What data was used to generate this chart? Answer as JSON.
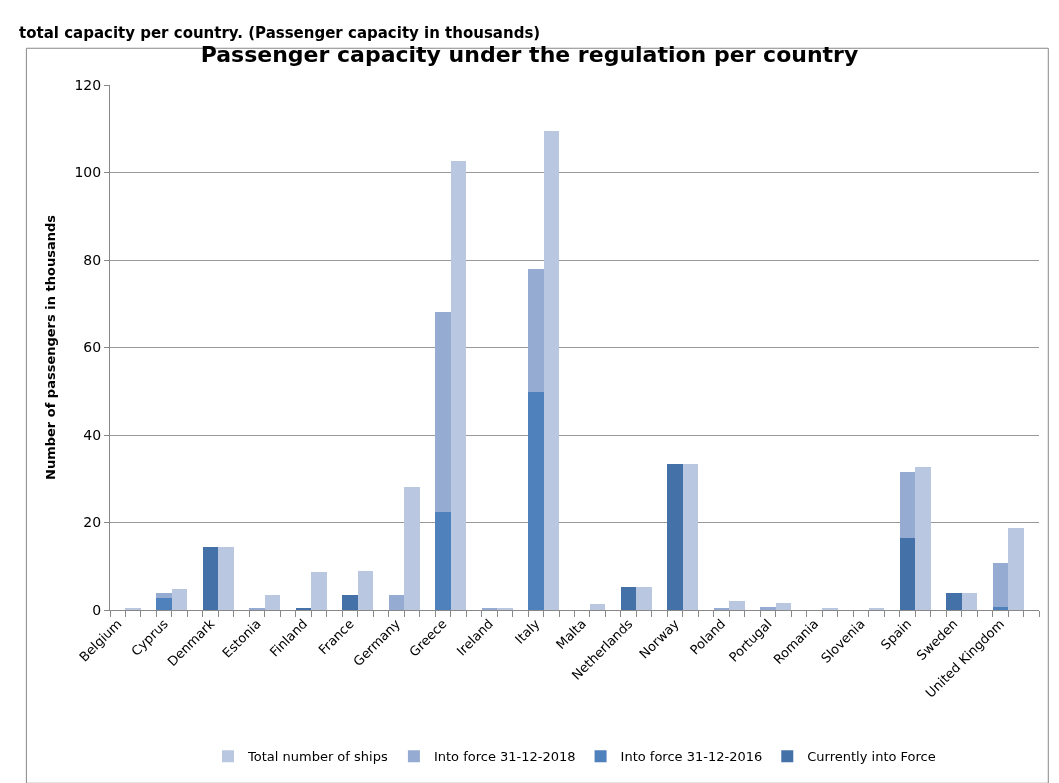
{
  "chart_data": {
    "type": "bar",
    "title": "Passenger capacity under the regulation per country",
    "ylabel": "Number of passengers in thousands",
    "annotations": [
      "total capacity per country. (Passenger capacity in thousands)"
    ],
    "categories": [
      "Belgium",
      null,
      null,
      "Cyprus",
      null,
      null,
      "Denmark",
      null,
      null,
      "Estonia",
      null,
      null,
      "Finland",
      null,
      null,
      "France",
      null,
      null,
      "Germany",
      null,
      null,
      "Greece",
      null,
      null,
      "Ireland",
      null,
      null,
      "Italy",
      null,
      null,
      "Malta",
      null,
      null,
      "Netherlands",
      null,
      null,
      "Norway",
      null,
      null,
      "Poland",
      null,
      null,
      "Portugal",
      null,
      null,
      "Romania",
      null,
      null,
      "Slovenia",
      null,
      null,
      "Spain",
      null,
      null,
      "Sweden",
      null,
      null,
      "United Kingdom",
      null,
      null
    ],
    "stacked": true,
    "series": [
      {
        "name": "Currently into Force",
        "color": "#4472a8",
        "values": [
          0,
          null,
          null,
          0,
          null,
          null,
          14.4,
          null,
          null,
          0,
          null,
          null,
          0.4,
          null,
          null,
          3.5,
          null,
          null,
          0,
          null,
          null,
          0,
          null,
          null,
          0,
          null,
          null,
          0,
          null,
          null,
          0,
          null,
          null,
          5.2,
          null,
          null,
          33.3,
          null,
          null,
          0,
          null,
          null,
          0,
          null,
          null,
          0,
          null,
          null,
          0,
          null,
          null,
          16.5,
          null,
          null,
          4.0,
          null,
          null,
          0,
          null,
          null
        ]
      },
      {
        "name": "Into force 31-12-2016",
        "color": "#4f81bd",
        "values": [
          0,
          null,
          null,
          2.8,
          null,
          null,
          0,
          null,
          null,
          0,
          null,
          null,
          0,
          null,
          null,
          0,
          null,
          null,
          0,
          null,
          null,
          22.5,
          null,
          null,
          0,
          null,
          null,
          49.8,
          null,
          null,
          0,
          null,
          null,
          0,
          null,
          null,
          0,
          null,
          null,
          0,
          null,
          null,
          0,
          null,
          null,
          0,
          null,
          null,
          0,
          null,
          null,
          0,
          null,
          null,
          0,
          null,
          null,
          0.8,
          null,
          null
        ]
      },
      {
        "name": "Into force 31-12-2018",
        "color": "#95abd1",
        "values": [
          0,
          null,
          null,
          1.0,
          null,
          null,
          0,
          null,
          null,
          0.3,
          null,
          null,
          0,
          null,
          null,
          0,
          null,
          null,
          3.5,
          null,
          null,
          45.7,
          null,
          null,
          0.3,
          null,
          null,
          28.1,
          null,
          null,
          0,
          null,
          null,
          0,
          null,
          null,
          0,
          null,
          null,
          0.3,
          null,
          null,
          0.8,
          null,
          null,
          0,
          null,
          null,
          0,
          null,
          null,
          15.0,
          null,
          null,
          0,
          null,
          null,
          10.0,
          null,
          null
        ]
      },
      {
        "name": "Total number of ships",
        "color": "#b9c7e1",
        "values": [
          null,
          0.3,
          null,
          null,
          4.8,
          null,
          null,
          14.4,
          null,
          null,
          3.5,
          null,
          null,
          8.7,
          null,
          null,
          9.0,
          null,
          null,
          28.2,
          null,
          null,
          102.7,
          null,
          null,
          0.3,
          null,
          null,
          109.6,
          null,
          null,
          1.3,
          null,
          null,
          5.2,
          null,
          null,
          33.3,
          null,
          null,
          2.0,
          null,
          null,
          1.5,
          null,
          null,
          0.3,
          null,
          null,
          0.3,
          null,
          null,
          32.8,
          null,
          null,
          4.0,
          null,
          null,
          18.8,
          null
        ]
      }
    ],
    "ylim": [
      0,
      120
    ],
    "yticks": [
      0,
      20,
      40,
      60,
      80,
      100,
      120
    ],
    "grid": "y",
    "legend": "bottom"
  }
}
